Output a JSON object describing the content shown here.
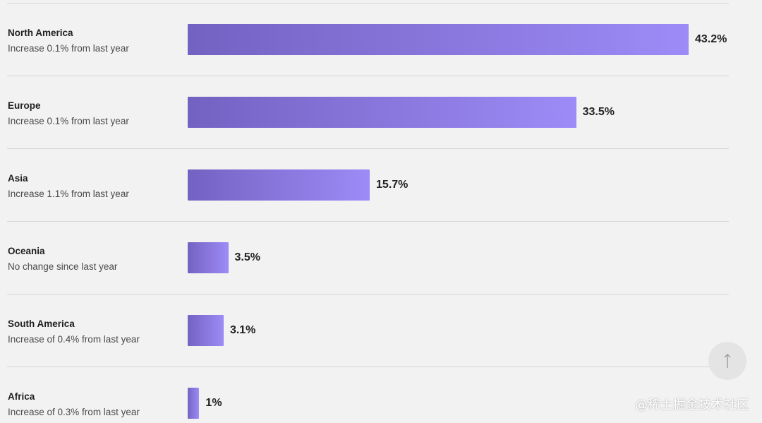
{
  "chart_data": {
    "type": "bar",
    "orientation": "horizontal",
    "categories": [
      "North America",
      "Europe",
      "Asia",
      "Oceania",
      "South America",
      "Africa"
    ],
    "values": [
      43.2,
      33.5,
      15.7,
      3.5,
      3.1,
      1
    ],
    "value_labels": [
      "43.2%",
      "33.5%",
      "15.7%",
      "3.5%",
      "3.1%",
      "1%"
    ],
    "subtitles": [
      "Increase 0.1% from last year",
      "Increase 0.1% from last year",
      "Increase 1.1% from last year",
      "No change since last year",
      "Increase of 0.4% from last year",
      "Increase of 0.3% from last year"
    ],
    "xlim": [
      0,
      43.2
    ],
    "grid": false,
    "bar_gradient": [
      "#7462c2",
      "#9d8bf7"
    ]
  },
  "scroll_top_icon": "arrow-up-icon",
  "watermark": "@稀土掘金技术社区"
}
